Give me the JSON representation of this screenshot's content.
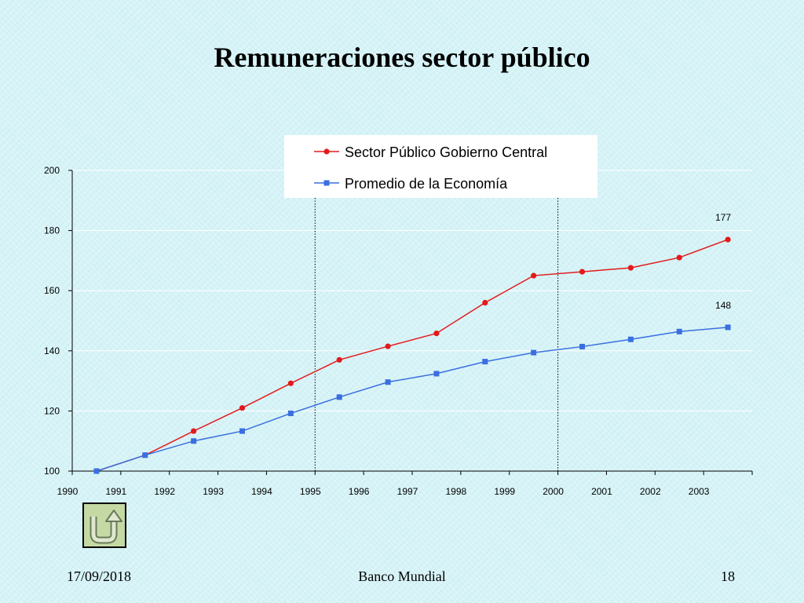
{
  "slide": {
    "title": "Remuneraciones sector público",
    "footer": {
      "date": "17/09/2018",
      "source": "Banco Mundial",
      "page": "18"
    }
  },
  "nav": {
    "back_icon": "u-turn-arrow-icon"
  },
  "colors": {
    "series_0": "#e31a1c",
    "series_1": "#3a6fe0"
  },
  "chart_data": {
    "type": "line",
    "title": "",
    "xlabel": "",
    "ylabel": "",
    "x": [
      "1990",
      "1991",
      "1992",
      "1993",
      "1994",
      "1995",
      "1996",
      "1997",
      "1998",
      "1999",
      "2000",
      "2001",
      "2002",
      "2003"
    ],
    "ylim": [
      100,
      200
    ],
    "yticks": [
      100,
      120,
      140,
      160,
      180,
      200
    ],
    "grid": "horizontal",
    "legend_position": "top-right",
    "series": [
      {
        "name": "Sector Público Gobierno Central",
        "marker": "circle",
        "values": [
          100,
          105.3,
          113.3,
          121,
          129.2,
          137,
          141.5,
          145.8,
          156,
          165,
          166.3,
          167.6,
          171,
          177
        ],
        "end_label": "177"
      },
      {
        "name": "Promedio de la Economía",
        "marker": "square",
        "values": [
          100,
          105.3,
          110,
          113.3,
          119.2,
          124.6,
          129.6,
          132.4,
          136.4,
          139.4,
          141.4,
          143.8,
          146.4,
          147.8
        ],
        "end_label": "148"
      }
    ],
    "reference_lines_between": [
      [
        "1994",
        "1995"
      ],
      [
        "1999",
        "2000"
      ]
    ]
  }
}
